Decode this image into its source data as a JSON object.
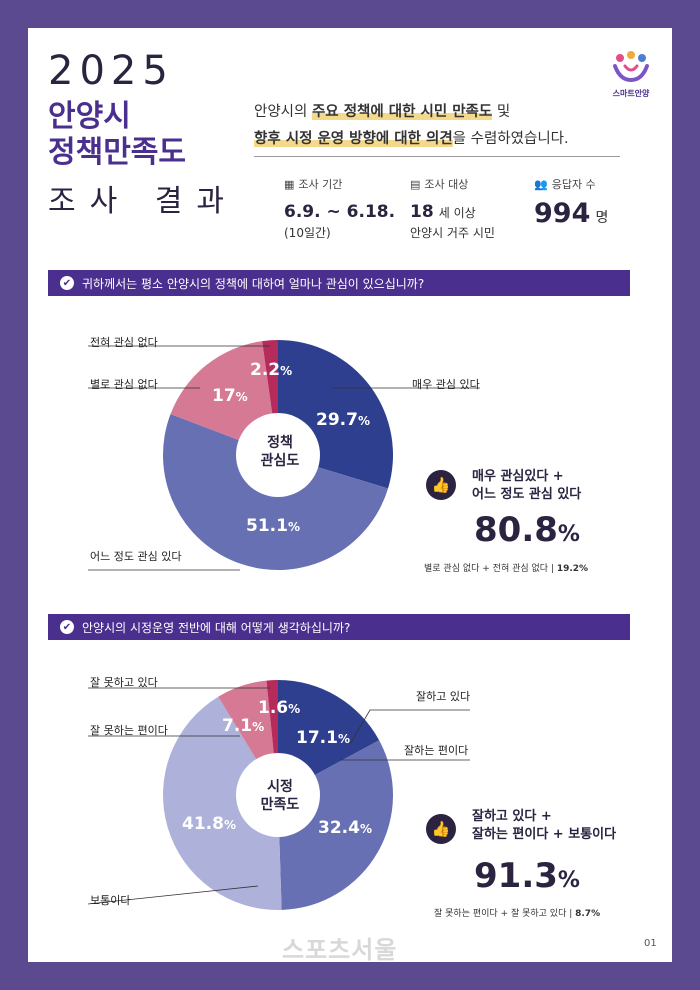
{
  "header": {
    "year": "2025",
    "title_line1": "안양시",
    "title_line2": "정책만족도",
    "title_line3": "조사 결과",
    "logo_text": "스마트안양",
    "intro_line1_parts": [
      "안양시의 ",
      "주요 정책에 대한 시민 만족도",
      " 및"
    ],
    "intro_line2_parts": [
      "향후 시정 운영 방향에 대한 의견",
      "을 수렴하였습니다."
    ]
  },
  "stats": {
    "period_label": "조사 기간",
    "period_value": "6.9. ~ 6.18.",
    "period_note": "(10일간)",
    "target_label": "조사 대상",
    "target_value": "18",
    "target_unit": "세 이상",
    "target_note": "안양시 거주 시민",
    "respondents_label": "응답자 수",
    "respondents_value": "994",
    "respondents_unit": "명"
  },
  "q1": {
    "question": "귀하께서는 평소 안양시의 정책에 대하여 얼마나 관심이 있으십니까?",
    "center_line1": "정책",
    "center_line2": "관심도",
    "summary_line1": "매우 관심있다 +",
    "summary_line2": "어느 정도 관심 있다",
    "summary_value": "80.8",
    "summary_unit": "%",
    "note_text": "별로 관심 없다 + 전혀 관심 없다",
    "note_value": "19.2%"
  },
  "q2": {
    "question": "안양시의 시정운영 전반에 대해 어떻게 생각하십니까?",
    "center_line1": "시정",
    "center_line2": "만족도",
    "summary_line1": "잘하고 있다 +",
    "summary_line2": "잘하는 편이다 + 보통이다",
    "summary_value": "91.3",
    "summary_unit": "%",
    "note_text": "잘 못하는 편이다 + 잘 못하고 있다",
    "note_value": "8.7%"
  },
  "chart_data": [
    {
      "type": "pie",
      "title": "정책 관심도",
      "categories": [
        "매우 관심 있다",
        "어느 정도 관심 있다",
        "별로 관심 없다",
        "전혀 관심 없다"
      ],
      "values": [
        29.7,
        51.1,
        17,
        2.2
      ],
      "value_labels": [
        "29.7",
        "51.1",
        "17",
        "2.2"
      ],
      "colors": [
        "#2f3f8f",
        "#6670b3",
        "#d57994",
        "#b52b5c"
      ]
    },
    {
      "type": "pie",
      "title": "시정 만족도",
      "categories": [
        "잘하고 있다",
        "잘하는 편이다",
        "보통이다",
        "잘 못하는 편이다",
        "잘 못하고 있다"
      ],
      "values": [
        17.1,
        32.4,
        41.8,
        7.1,
        1.6
      ],
      "value_labels": [
        "17.1",
        "32.4",
        "41.8",
        "7.1",
        "1.6"
      ],
      "colors": [
        "#2f3f8f",
        "#6670b3",
        "#aeb1d9",
        "#d57994",
        "#b52b5c"
      ]
    }
  ],
  "footer": {
    "watermark": "스포츠서울",
    "page_number": "01"
  }
}
